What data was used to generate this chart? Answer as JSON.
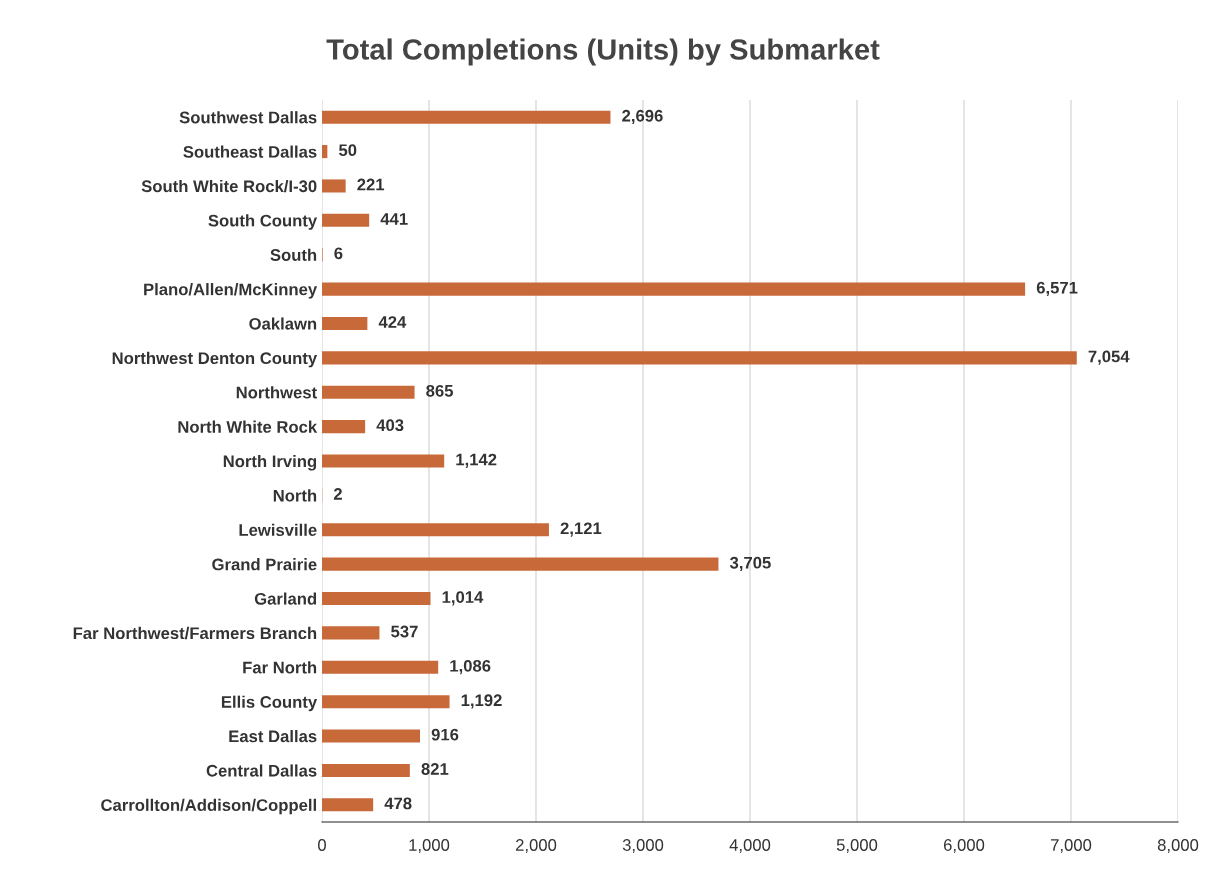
{
  "chart_data": {
    "type": "bar",
    "orientation": "horizontal",
    "title": "Total Completions (Units) by Submarket",
    "categories": [
      "Southwest Dallas",
      "Southeast Dallas",
      "South White Rock/I-30",
      "South County",
      "South",
      "Plano/Allen/McKinney",
      "Oaklawn",
      "Northwest Denton County",
      "Northwest",
      "North White Rock",
      "North Irving",
      "North",
      "Lewisville",
      "Grand Prairie",
      "Garland",
      "Far Northwest/Farmers Branch",
      "Far North",
      "Ellis County",
      "East Dallas",
      "Central Dallas",
      "Carrollton/Addison/Coppell"
    ],
    "values": [
      2696,
      50,
      221,
      441,
      6,
      6571,
      424,
      7054,
      865,
      403,
      1142,
      2,
      2121,
      3705,
      1014,
      537,
      1086,
      1192,
      916,
      821,
      478
    ],
    "value_labels": [
      "2,696",
      "50",
      "221",
      "441",
      "6",
      "6,571",
      "424",
      "7,054",
      "865",
      "403",
      "1,142",
      "2",
      "2,121",
      "3,705",
      "1,014",
      "537",
      "1,086",
      "1,192",
      "916",
      "821",
      "478"
    ],
    "color": "#c8693a",
    "xlim": [
      0,
      8000
    ],
    "xticks": [
      0,
      {
        "value": 1000,
        "label": "1,000"
      },
      {
        "value": 2000,
        "label": "2,000"
      },
      {
        "value": 3000,
        "label": "3,000"
      },
      {
        "value": 4000,
        "label": "4,000"
      },
      {
        "value": 5000,
        "label": "5,000"
      },
      {
        "value": 6000,
        "label": "6,000"
      },
      {
        "value": 7000,
        "label": "7,000"
      },
      {
        "value": 8000,
        "label": "8,000"
      }
    ],
    "grid": "x"
  }
}
